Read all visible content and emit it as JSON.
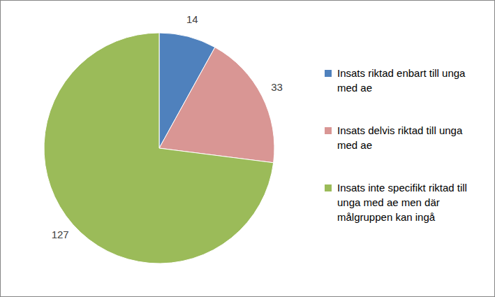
{
  "chart_data": {
    "type": "pie",
    "categories": [
      "Insats riktad enbart till unga med ae",
      "Insats delvis riktad till unga med ae",
      "Insats inte specifikt riktad till unga med ae men där målgruppen kan ingå"
    ],
    "values": [
      14,
      33,
      127
    ],
    "colors": [
      "#4f81bd",
      "#d99694",
      "#9bbb59"
    ],
    "data_labels": true,
    "legend": "right"
  }
}
